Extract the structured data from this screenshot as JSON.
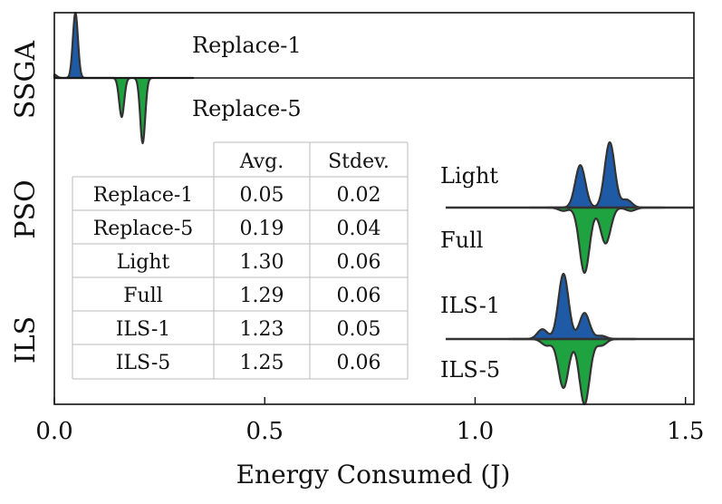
{
  "chart_data": {
    "type": "violin",
    "title": "",
    "xlabel": "Energy Consumed (J)",
    "ylabel": "",
    "xlim": [
      0.0,
      1.52
    ],
    "xticks": [
      0.0,
      0.5,
      1.0,
      1.5
    ],
    "xtick_labels": [
      "0.0",
      "0.5",
      "1.0",
      "1.5"
    ],
    "groups": [
      "SSGA",
      "PSO",
      "ILS"
    ],
    "colors": {
      "upper": "#1f5aa6",
      "lower": "#1fa341",
      "outline": "#333333"
    },
    "series": [
      {
        "name": "Replace-1",
        "group": "SSGA",
        "side": "upper",
        "avg": 0.05,
        "stdev": 0.02,
        "density": [
          [
            0.0,
            0.05
          ],
          [
            0.04,
            0.0
          ],
          [
            0.05,
            1.0
          ],
          [
            0.062,
            0.0
          ]
        ]
      },
      {
        "name": "Replace-5",
        "group": "SSGA",
        "side": "lower",
        "avg": 0.19,
        "stdev": 0.04,
        "density": [
          [
            0.05,
            0.0
          ],
          [
            0.16,
            0.6
          ],
          [
            0.21,
            1.0
          ],
          [
            0.25,
            0.0
          ]
        ]
      },
      {
        "name": "Light",
        "group": "PSO",
        "side": "upper",
        "avg": 1.3,
        "stdev": 0.06,
        "density": [
          [
            1.25,
            0.65
          ],
          [
            1.32,
            1.0
          ],
          [
            1.36,
            0.12
          ]
        ]
      },
      {
        "name": "Full",
        "group": "PSO",
        "side": "lower",
        "avg": 1.29,
        "stdev": 0.06,
        "density": [
          [
            1.21,
            0.05
          ],
          [
            1.26,
            1.0
          ],
          [
            1.31,
            0.55
          ],
          [
            1.37,
            0.05
          ]
        ]
      },
      {
        "name": "ILS-1",
        "group": "ILS",
        "side": "upper",
        "avg": 1.23,
        "stdev": 0.05,
        "density": [
          [
            1.16,
            0.15
          ],
          [
            1.21,
            1.0
          ],
          [
            1.26,
            0.4
          ],
          [
            1.3,
            0.05
          ]
        ]
      },
      {
        "name": "ILS-5",
        "group": "ILS",
        "side": "lower",
        "avg": 1.25,
        "stdev": 0.06,
        "density": [
          [
            1.17,
            0.1
          ],
          [
            1.21,
            0.75
          ],
          [
            1.26,
            1.0
          ],
          [
            1.3,
            0.1
          ]
        ]
      }
    ],
    "table": {
      "headers": [
        "",
        "Avg.",
        "Stdev."
      ],
      "rows": [
        [
          "Replace-1",
          "0.05",
          "0.02"
        ],
        [
          "Replace-5",
          "0.19",
          "0.04"
        ],
        [
          "Light",
          "1.30",
          "0.06"
        ],
        [
          "Full",
          "1.29",
          "0.06"
        ],
        [
          "ILS-1",
          "1.23",
          "0.05"
        ],
        [
          "ILS-5",
          "1.25",
          "0.06"
        ]
      ]
    }
  }
}
